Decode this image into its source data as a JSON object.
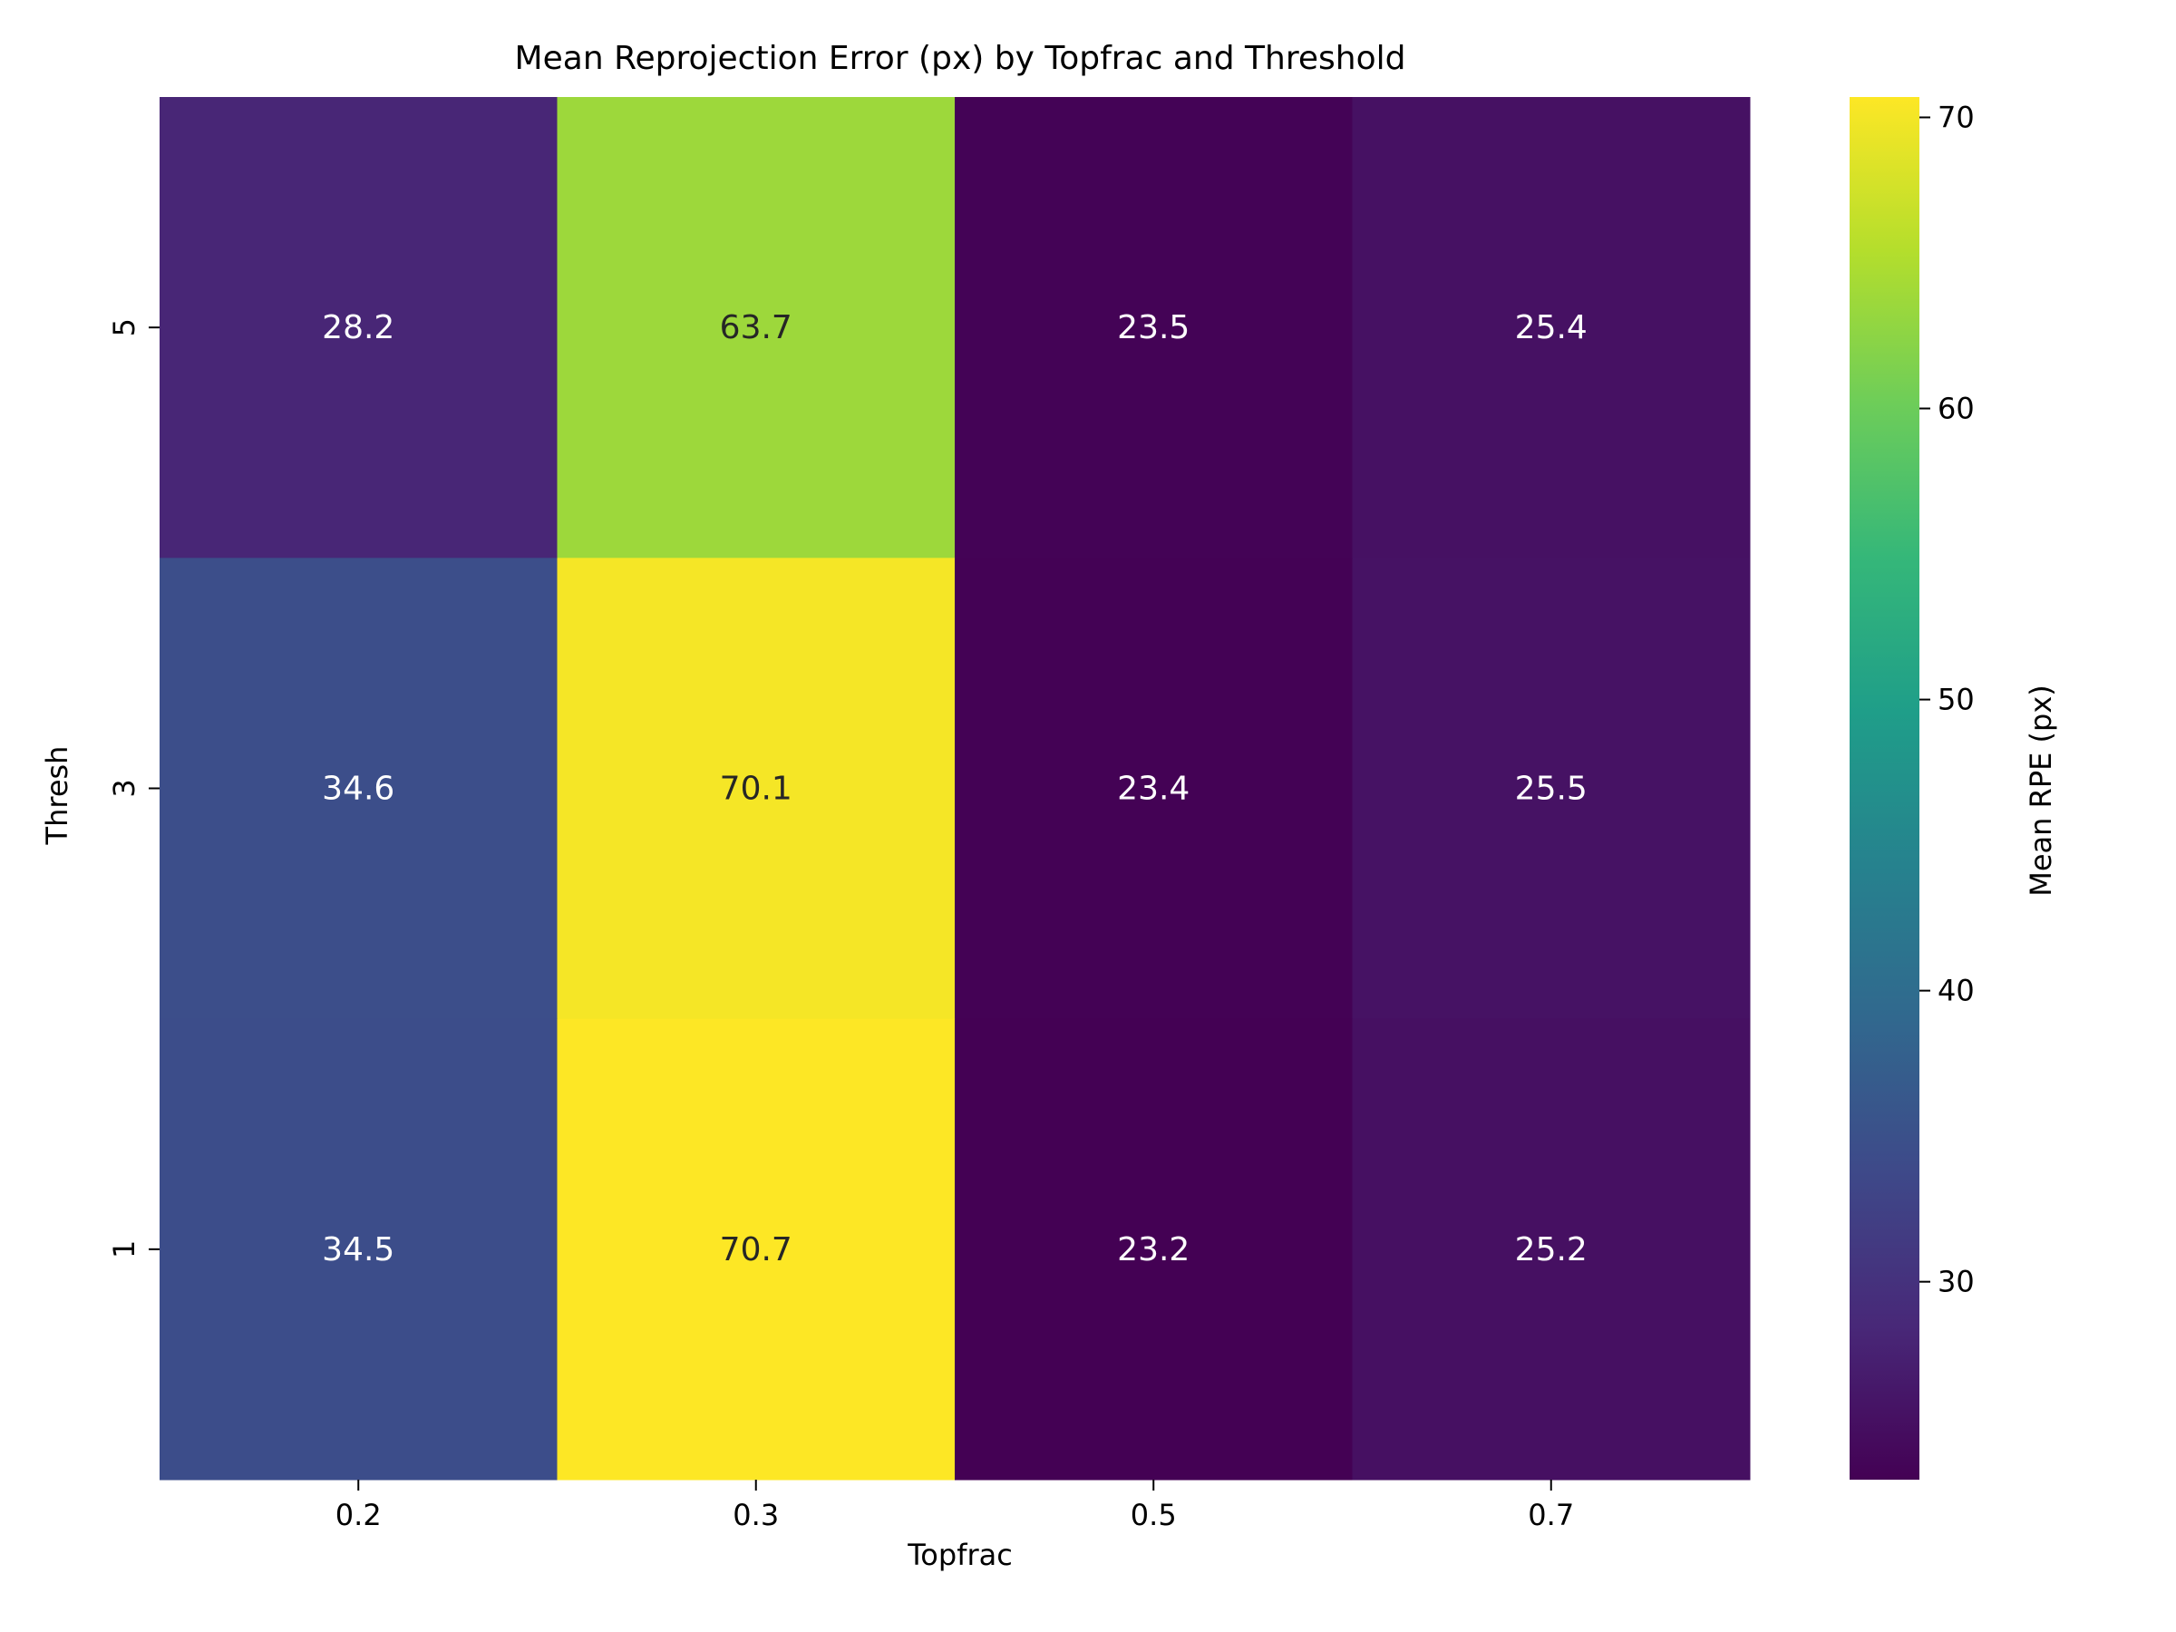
{
  "chart_data": {
    "type": "heatmap",
    "title": "Mean Reprojection Error (px) by Topfrac and Threshold",
    "xlabel": "Topfrac",
    "ylabel": "Thresh",
    "x_categories": [
      "0.2",
      "0.3",
      "0.5",
      "0.7"
    ],
    "y_categories": [
      "5",
      "3",
      "1"
    ],
    "values": [
      [
        28.2,
        63.7,
        23.5,
        25.4
      ],
      [
        34.6,
        70.1,
        23.4,
        25.5
      ],
      [
        34.5,
        70.7,
        23.2,
        25.2
      ]
    ],
    "value_labels": [
      [
        "28.2",
        "63.7",
        "23.5",
        "25.4"
      ],
      [
        "34.6",
        "70.1",
        "23.4",
        "25.5"
      ],
      [
        "34.5",
        "70.7",
        "23.2",
        "25.2"
      ]
    ],
    "colormap": "viridis",
    "colorbar": {
      "label": "Mean RPE (px)",
      "range": [
        23.2,
        70.7
      ],
      "ticks": [
        "30",
        "40",
        "50",
        "60",
        "70"
      ]
    },
    "grid": false,
    "colors": {
      "annotation_light": "#ffffff",
      "annotation_dark": "#262626",
      "axis": "#000000"
    }
  }
}
